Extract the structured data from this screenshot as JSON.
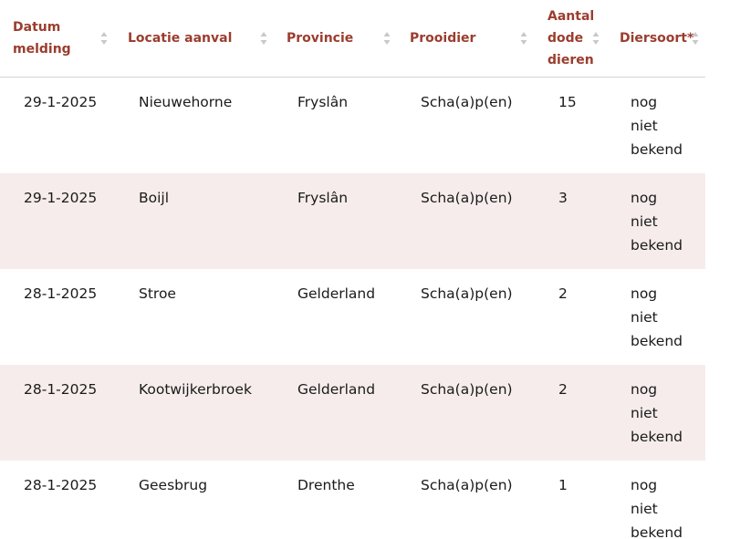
{
  "table": {
    "headers": [
      {
        "lines": [
          "Datum",
          "melding"
        ]
      },
      {
        "lines": [
          "Locatie aanval"
        ]
      },
      {
        "lines": [
          "Provincie"
        ]
      },
      {
        "lines": [
          "Prooidier"
        ]
      },
      {
        "lines": [
          "Aantal",
          "dode",
          "dieren"
        ]
      },
      {
        "lines": [
          "Diersoort*"
        ]
      }
    ],
    "rows": [
      {
        "datum": "29-1-2025",
        "locatie": "Nieuwehorne",
        "provincie": "Fryslân",
        "prooidier": "Scha(a)p(en)",
        "aantal": "15",
        "diersoort": [
          "nog",
          "niet",
          "bekend"
        ]
      },
      {
        "datum": "29-1-2025",
        "locatie": "Boijl",
        "provincie": "Fryslân",
        "prooidier": "Scha(a)p(en)",
        "aantal": "3",
        "diersoort": [
          "nog",
          "niet",
          "bekend"
        ]
      },
      {
        "datum": "28-1-2025",
        "locatie": "Stroe",
        "provincie": "Gelderland",
        "prooidier": "Scha(a)p(en)",
        "aantal": "2",
        "diersoort": [
          "nog",
          "niet",
          "bekend"
        ]
      },
      {
        "datum": "28-1-2025",
        "locatie": "Kootwijkerbroek",
        "provincie": "Gelderland",
        "prooidier": "Scha(a)p(en)",
        "aantal": "2",
        "diersoort": [
          "nog",
          "niet",
          "bekend"
        ]
      },
      {
        "datum": "28-1-2025",
        "locatie": "Geesbrug",
        "provincie": "Drenthe",
        "prooidier": "Scha(a)p(en)",
        "aantal": "1",
        "diersoort": [
          "nog",
          "niet",
          "bekend"
        ]
      }
    ]
  },
  "colors": {
    "header_text": "#9b3d2e",
    "row_alt_bg": "#f7ecec",
    "sort_icon": "#c8c8c8"
  }
}
